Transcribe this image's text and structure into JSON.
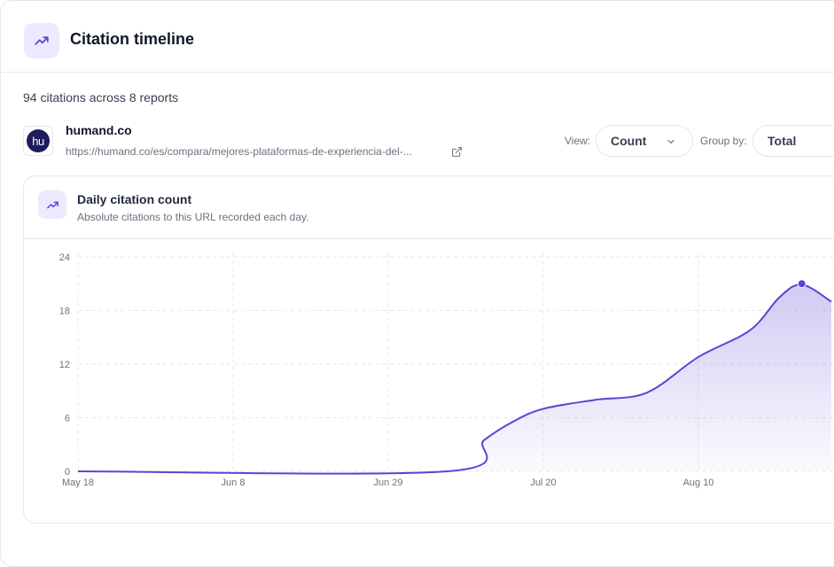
{
  "header": {
    "title": "Citation timeline",
    "icon": "trending-up-icon"
  },
  "summary": "94 citations across 8 reports",
  "site": {
    "logo_text": "hu",
    "name": "humand.co",
    "url": "https://humand.co/es/compara/mejores-plataformas-de-experiencia-del-..."
  },
  "controls": {
    "view_label": "View:",
    "view_value": "Count",
    "group_label": "Group by:",
    "group_value": "Total"
  },
  "card": {
    "title": "Daily citation count",
    "subtitle": "Absolute citations to this URL recorded each day."
  },
  "colors": {
    "accent": "#5b43d6",
    "accent_soft": "#ede9fe"
  },
  "chart_data": {
    "type": "area",
    "title": "Daily citation count",
    "xlabel": "",
    "ylabel": "",
    "y_ticks": [
      "0",
      "6",
      "12",
      "18",
      "24"
    ],
    "x_ticks": [
      "May 18",
      "Jun 8",
      "Jun 29",
      "Jul 20",
      "Aug 10"
    ],
    "ylim": [
      0,
      24
    ],
    "grid": true,
    "start_date": "2025-05-18",
    "x": [
      "2025-05-18",
      "2025-07-07",
      "2025-07-12",
      "2025-07-16",
      "2025-07-20",
      "2025-07-27",
      "2025-08-03",
      "2025-08-10",
      "2025-08-17",
      "2025-08-21",
      "2025-08-24",
      "2025-08-28"
    ],
    "values": [
      0,
      0,
      3.5,
      5.6,
      7,
      8,
      8.8,
      12.8,
      15.8,
      19.5,
      20.9,
      19
    ],
    "highlight": {
      "x": "2025-08-24",
      "y": 21
    }
  }
}
